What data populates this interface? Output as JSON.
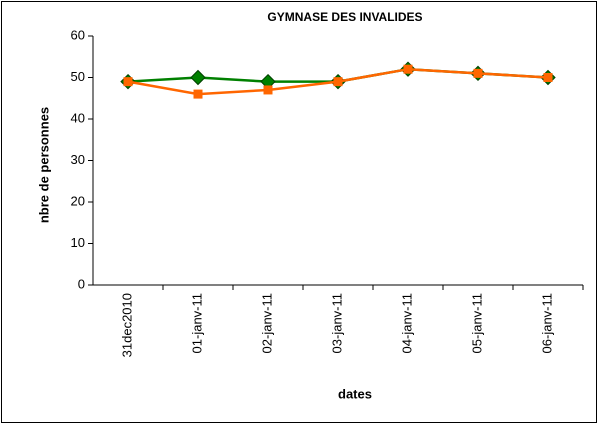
{
  "chart_data": {
    "type": "line",
    "title": "GYMNASE DES INVALIDES",
    "x_label": "dates",
    "y_label": "nbre de personnes",
    "categories": [
      "31dec2010",
      "01-janv-11",
      "02-janv-11",
      "03-janv-11",
      "04-janv-11",
      "05-janv-11",
      "06-janv-11"
    ],
    "series": [
      {
        "color": "#008000",
        "marker": "diamond",
        "values": [
          49,
          50,
          49,
          49,
          52,
          51,
          50
        ]
      },
      {
        "color": "#ff6600",
        "marker": "square",
        "values": [
          49,
          46,
          47,
          49,
          52,
          51,
          50
        ]
      }
    ],
    "ylim": [
      0,
      60
    ],
    "yticks": [
      0,
      10,
      20,
      30,
      40,
      50,
      60
    ],
    "grid": false
  }
}
